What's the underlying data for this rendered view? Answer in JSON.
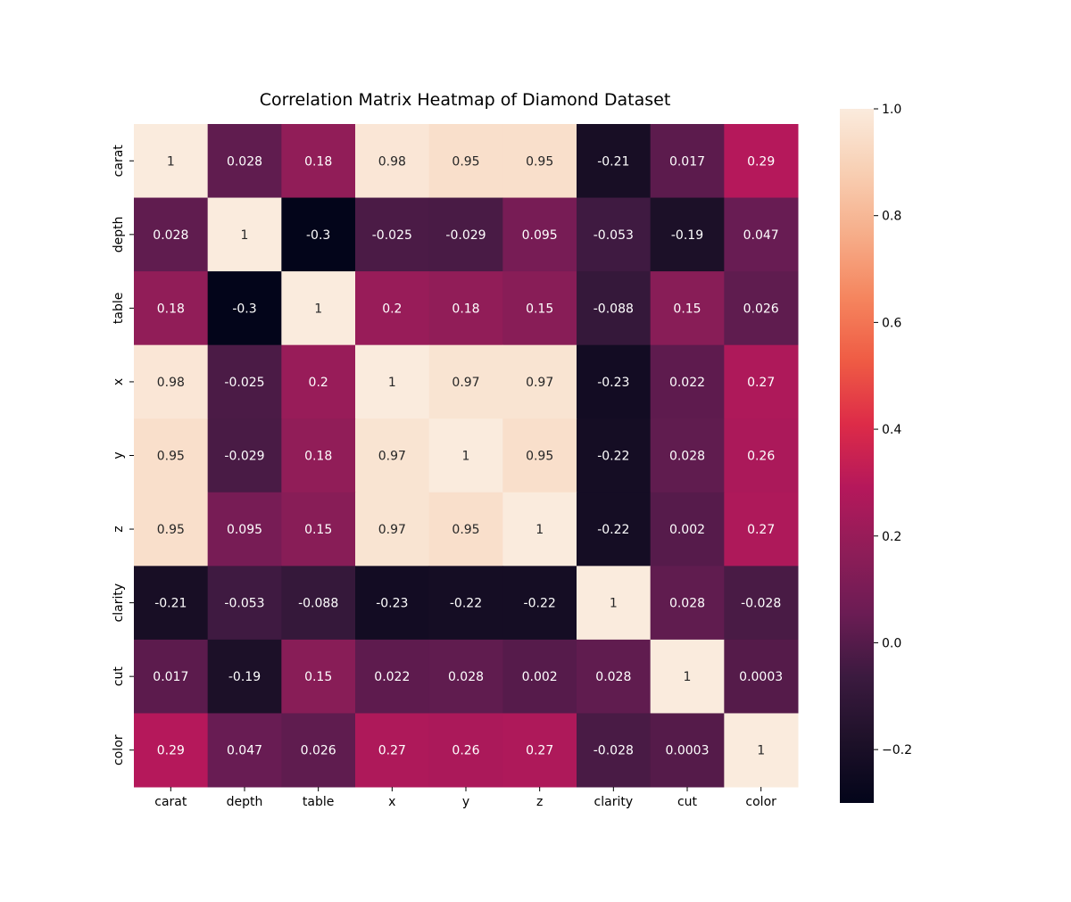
{
  "chart_data": {
    "type": "heatmap",
    "title": "Correlation Matrix Heatmap of Diamond Dataset",
    "rows": [
      "carat",
      "depth",
      "table",
      "x",
      "y",
      "z",
      "clarity",
      "cut",
      "color"
    ],
    "columns": [
      "carat",
      "depth",
      "table",
      "x",
      "y",
      "z",
      "clarity",
      "cut",
      "color"
    ],
    "values": [
      [
        1,
        0.028,
        0.18,
        0.98,
        0.95,
        0.95,
        -0.21,
        0.017,
        0.29
      ],
      [
        0.028,
        1,
        -0.3,
        -0.025,
        -0.029,
        0.095,
        -0.053,
        -0.19,
        0.047
      ],
      [
        0.18,
        -0.3,
        1,
        0.2,
        0.18,
        0.15,
        -0.088,
        0.15,
        0.026
      ],
      [
        0.98,
        -0.025,
        0.2,
        1,
        0.97,
        0.97,
        -0.23,
        0.022,
        0.27
      ],
      [
        0.95,
        -0.029,
        0.18,
        0.97,
        1,
        0.95,
        -0.22,
        0.028,
        0.26
      ],
      [
        0.95,
        0.095,
        0.15,
        0.97,
        0.95,
        1,
        -0.22,
        0.002,
        0.27
      ],
      [
        -0.21,
        -0.053,
        -0.088,
        -0.23,
        -0.22,
        -0.22,
        1,
        0.028,
        -0.028
      ],
      [
        0.017,
        -0.19,
        0.15,
        0.022,
        0.028,
        0.002,
        0.028,
        1,
        0.0003
      ],
      [
        0.29,
        0.047,
        0.026,
        0.27,
        0.26,
        0.27,
        -0.028,
        0.0003,
        1
      ]
    ],
    "colorbar": {
      "range": [
        -0.3,
        1.0
      ],
      "ticks": [
        -0.2,
        0.0,
        0.2,
        0.4,
        0.6,
        0.8,
        1.0
      ],
      "tick_labels": [
        "−0.2",
        "0.0",
        "0.2",
        "0.4",
        "0.6",
        "0.8",
        "1.0"
      ],
      "colormap": "rocket",
      "colormap_stops": [
        "#03051a",
        "#1e1129",
        "#3b1a3f",
        "#6b1c54",
        "#8f1d58",
        "#b5185b",
        "#dd2b48",
        "#ef5b44",
        "#f5855e",
        "#f6ad89",
        "#f8cfb3",
        "#faebdd"
      ]
    },
    "annotations": true,
    "legend": "right"
  }
}
